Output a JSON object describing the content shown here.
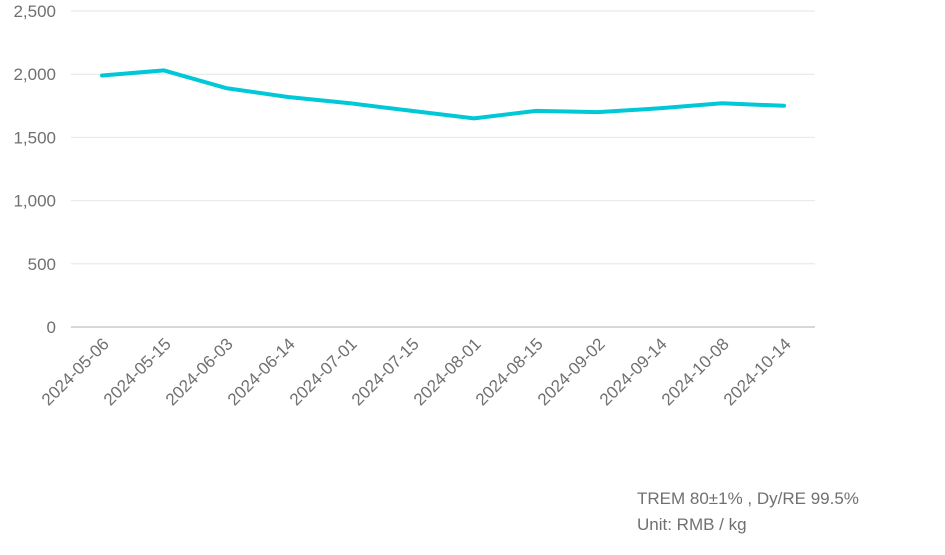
{
  "chart_data": {
    "type": "line",
    "title": "",
    "xlabel": "",
    "ylabel": "",
    "categories": [
      "2024-05-06",
      "2024-05-15",
      "2024-06-03",
      "2024-06-14",
      "2024-07-01",
      "2024-07-15",
      "2024-08-01",
      "2024-08-15",
      "2024-09-02",
      "2024-09-14",
      "2024-10-08",
      "2024-10-14"
    ],
    "series": [
      {
        "name": "TREM 80±1%, Dy/RE 99.5%",
        "color": "#00c8d7",
        "values": [
          1990,
          2030,
          1890,
          1820,
          1770,
          1710,
          1650,
          1710,
          1700,
          1730,
          1770,
          1750
        ]
      }
    ],
    "ylim": [
      0,
      2500
    ],
    "yticks": [
      0,
      500,
      1000,
      1500,
      2000,
      2500
    ],
    "ytick_labels": [
      "0",
      "500",
      "1,000",
      "1,500",
      "2,000",
      "2,500"
    ],
    "grid": true,
    "legend": "none",
    "annotations": [
      "TREM 80±1% , Dy/RE 99.5%",
      "Unit: RMB / kg"
    ]
  },
  "note": {
    "line1": "TREM 80±1% , Dy/RE 99.5%",
    "line2": "Unit: RMB / kg"
  },
  "colors": {
    "series": "#00c8d7",
    "grid": "#e6e6e6",
    "text": "#707070"
  }
}
